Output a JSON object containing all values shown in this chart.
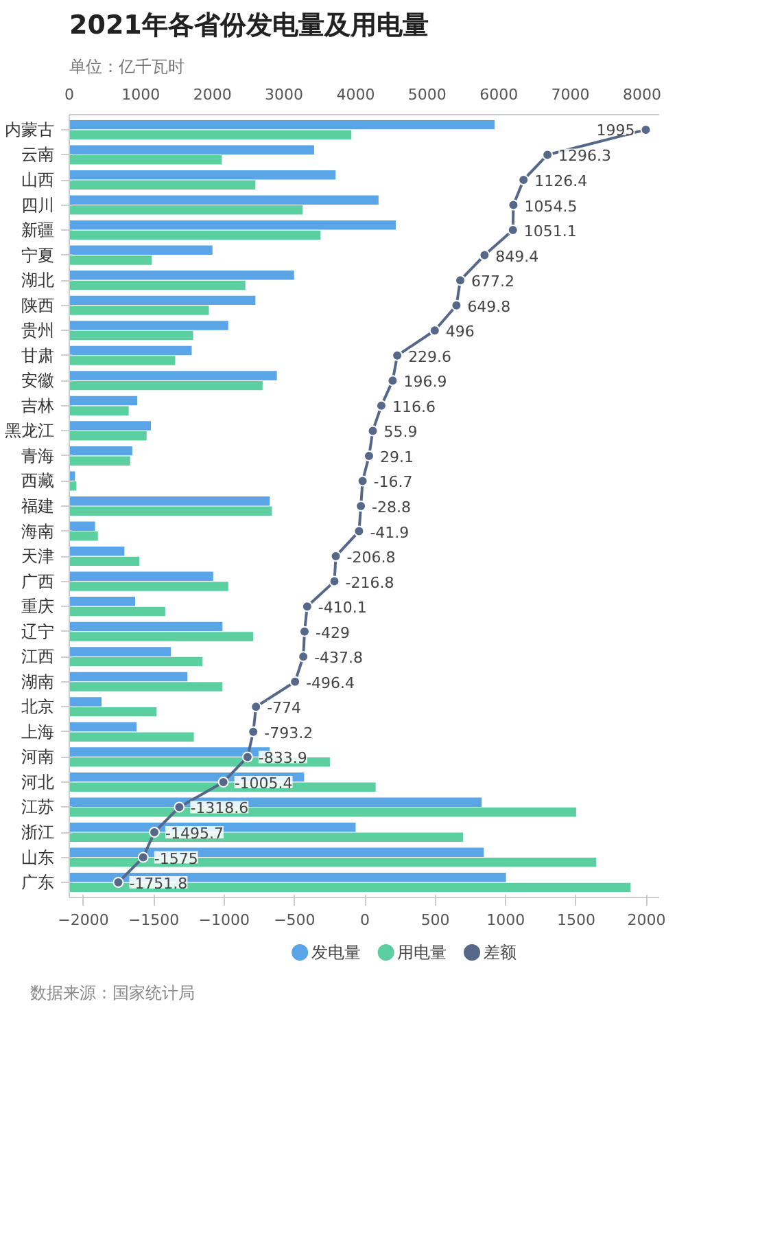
{
  "chart_data": {
    "type": "bar",
    "orientation": "horizontal",
    "title": "2021年各省份发电量及用电量",
    "subtitle": "单位：亿千瓦时",
    "categories": [
      "内蒙古",
      "云南",
      "山西",
      "四川",
      "新疆",
      "宁夏",
      "湖北",
      "陕西",
      "贵州",
      "甘肃",
      "安徽",
      "吉林",
      "黑龙江",
      "青海",
      "西藏",
      "福建",
      "海南",
      "天津",
      "广西",
      "重庆",
      "辽宁",
      "江西",
      "湖南",
      "北京",
      "上海",
      "河南",
      "河北",
      "江苏",
      "浙江",
      "山东",
      "广东"
    ],
    "series": [
      {
        "name": "发电量",
        "color": "#5aa5e8",
        "axis": "x2",
        "values": [
          5940,
          3420,
          3720,
          4320,
          4560,
          2000,
          3140,
          2600,
          2220,
          1710,
          2900,
          950,
          1140,
          880,
          80,
          2800,
          360,
          770,
          2010,
          920,
          2140,
          1420,
          1650,
          450,
          940,
          2800,
          3280,
          5760,
          4000,
          5790,
          6100
        ]
      },
      {
        "name": "用电量",
        "color": "#5ccfa0",
        "axis": "x2",
        "values": [
          3940,
          2130,
          2600,
          3260,
          3510,
          1150,
          2460,
          1950,
          1730,
          1480,
          2700,
          830,
          1080,
          850,
          100,
          2830,
          400,
          980,
          2220,
          1340,
          2570,
          1860,
          2140,
          1220,
          1740,
          3640,
          4280,
          7080,
          5500,
          7360,
          7840
        ]
      },
      {
        "name": "差额",
        "color": "#56688a",
        "type": "line",
        "marker": "circle",
        "values": [
          1995,
          1296.3,
          1126.4,
          1054.5,
          1051.1,
          849.4,
          677.2,
          649.8,
          496,
          229.6,
          196.9,
          116.6,
          55.9,
          29.1,
          -16.7,
          -28.8,
          -41.9,
          -206.8,
          -216.8,
          -410.1,
          -429,
          -437.8,
          -496.4,
          -774,
          -793.2,
          -833.9,
          -1005.4,
          -1318.6,
          -1495.7,
          -1575,
          -1751.8
        ],
        "value_labels": [
          "1995",
          "1296.3",
          "1126.4",
          "1054.5",
          "1051.1",
          "849.4",
          "677.2",
          "649.8",
          "496",
          "229.6",
          "196.9",
          "116.6",
          "55.9",
          "29.1",
          "-16.7",
          "-28.8",
          "-41.9",
          "-206.8",
          "-216.8",
          "-410.1",
          "-429",
          "-437.8",
          "-496.4",
          "-774",
          "-793.2",
          "-833.9",
          "-1005.4",
          "-1318.6",
          "-1495.7",
          "-1575",
          "-1751.8"
        ]
      }
    ],
    "xlim": [
      -2100,
      2090
    ],
    "xticks": [
      -2000,
      -1500,
      -1000,
      -500,
      0,
      500,
      1000,
      1500,
      2000
    ],
    "x2lim": [
      0,
      8240
    ],
    "x2ticks": [
      0,
      1000,
      2000,
      3000,
      4000,
      5000,
      6000,
      7000,
      8000
    ],
    "legend": "bottom",
    "annotations": [
      "数据来源：国家统计局"
    ]
  }
}
